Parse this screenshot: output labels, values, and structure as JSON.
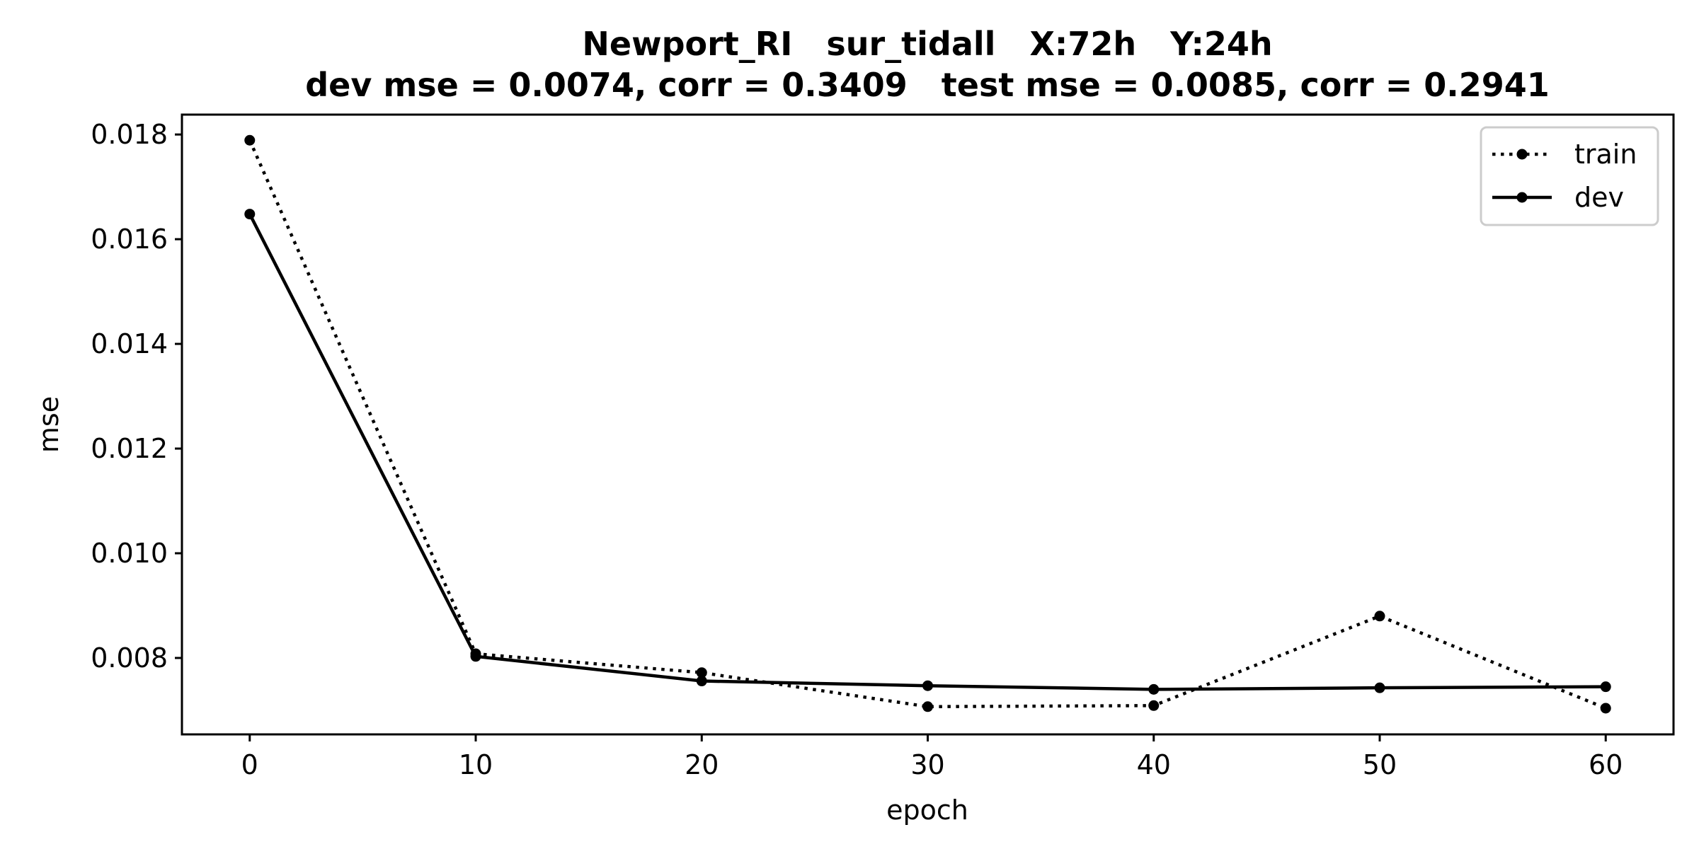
{
  "chart_data": {
    "type": "line",
    "title_line1": "Newport_RI   sur_tidall   X:72h   Y:24h",
    "title_line2": "dev mse = 0.0074, corr = 0.3409   test mse = 0.0085, corr = 0.2941",
    "xlabel": "epoch",
    "ylabel": "mse",
    "x": [
      0,
      10,
      20,
      30,
      40,
      50,
      60
    ],
    "xlim": [
      -3,
      63
    ],
    "ylim": [
      0.00654,
      0.01838
    ],
    "xticks": [
      0,
      10,
      20,
      30,
      40,
      50,
      60
    ],
    "xtick_labels": [
      "0",
      "10",
      "20",
      "30",
      "40",
      "50",
      "60"
    ],
    "yticks": [
      0.008,
      0.01,
      0.012,
      0.014,
      0.016,
      0.018
    ],
    "ytick_labels": [
      "0.008",
      "0.010",
      "0.012",
      "0.014",
      "0.016",
      "0.018"
    ],
    "grid": false,
    "legend_position": "top-right",
    "series": [
      {
        "name": "train",
        "style": "dotted",
        "color": "#000000",
        "values": [
          0.01789,
          0.00808,
          0.00772,
          0.00707,
          0.00709,
          0.0088,
          0.00704
        ]
      },
      {
        "name": "dev",
        "style": "solid",
        "color": "#000000",
        "values": [
          0.01648,
          0.00803,
          0.00756,
          0.00747,
          0.0074,
          0.00743,
          0.00745
        ]
      }
    ]
  }
}
